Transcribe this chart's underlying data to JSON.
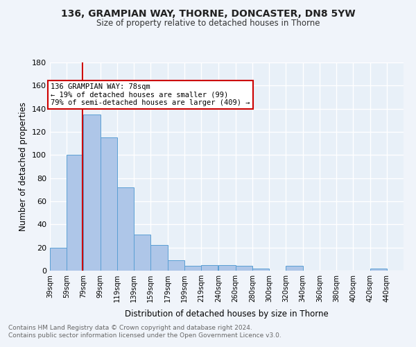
{
  "title1": "136, GRAMPIAN WAY, THORNE, DONCASTER, DN8 5YW",
  "title2": "Size of property relative to detached houses in Thorne",
  "xlabel": "Distribution of detached houses by size in Thorne",
  "ylabel": "Number of detached properties",
  "footnote1": "Contains HM Land Registry data © Crown copyright and database right 2024.",
  "footnote2": "Contains public sector information licensed under the Open Government Licence v3.0.",
  "bar_labels": [
    "39sqm",
    "59sqm",
    "79sqm",
    "99sqm",
    "119sqm",
    "139sqm",
    "159sqm",
    "179sqm",
    "199sqm",
    "219sqm",
    "240sqm",
    "260sqm",
    "280sqm",
    "300sqm",
    "320sqm",
    "340sqm",
    "360sqm",
    "380sqm",
    "400sqm",
    "420sqm",
    "440sqm"
  ],
  "bar_values": [
    20,
    100,
    135,
    115,
    72,
    31,
    22,
    9,
    4,
    5,
    5,
    4,
    2,
    0,
    4,
    0,
    0,
    0,
    0,
    2,
    0
  ],
  "bar_color": "#aec6e8",
  "bar_edge_color": "#5a9fd4",
  "bg_color": "#e8f0f8",
  "grid_color": "#ffffff",
  "property_line_x": 78,
  "property_line_color": "#cc0000",
  "annotation_text": "136 GRAMPIAN WAY: 78sqm\n← 19% of detached houses are smaller (99)\n79% of semi-detached houses are larger (409) →",
  "annotation_box_color": "#ffffff",
  "annotation_box_edge": "#cc0000",
  "ylim": [
    0,
    180
  ],
  "yticks": [
    0,
    20,
    40,
    60,
    80,
    100,
    120,
    140,
    160,
    180
  ],
  "fig_bg": "#f0f4fa"
}
